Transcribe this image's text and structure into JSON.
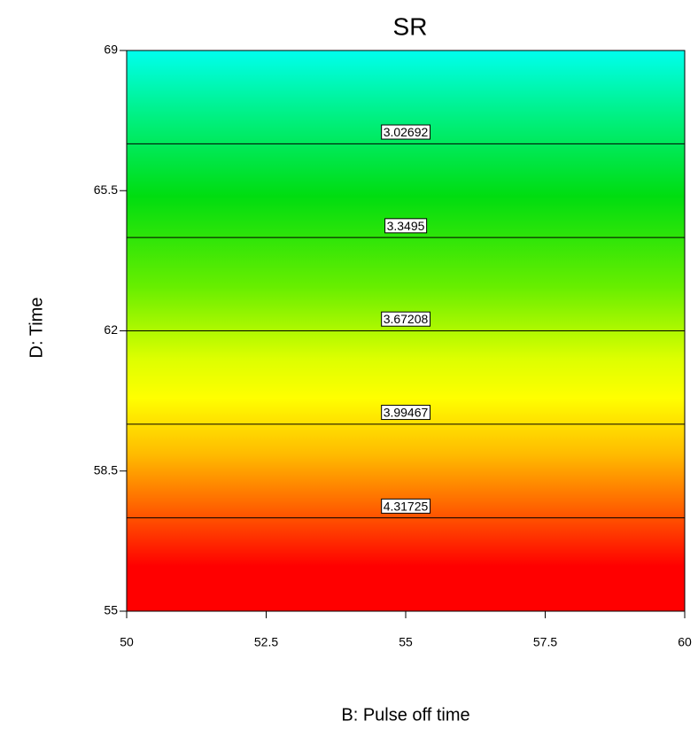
{
  "chart_data": {
    "type": "contour",
    "title": "SR",
    "xlabel": "B: Pulse off time",
    "ylabel": "D: Time",
    "xlim": [
      50,
      60
    ],
    "ylim": [
      55,
      69
    ],
    "xticks": [
      50,
      52.5,
      55,
      57.5,
      60
    ],
    "yticks": [
      55,
      58.5,
      62,
      65.5,
      69
    ],
    "contours": [
      {
        "level": 3.02692,
        "y": 66.67
      },
      {
        "level": 3.3495,
        "y": 64.33
      },
      {
        "level": 3.67208,
        "y": 62
      },
      {
        "level": 3.99467,
        "y": 59.67
      },
      {
        "level": 4.31725,
        "y": 57.33
      }
    ],
    "line_color": "#000000"
  }
}
